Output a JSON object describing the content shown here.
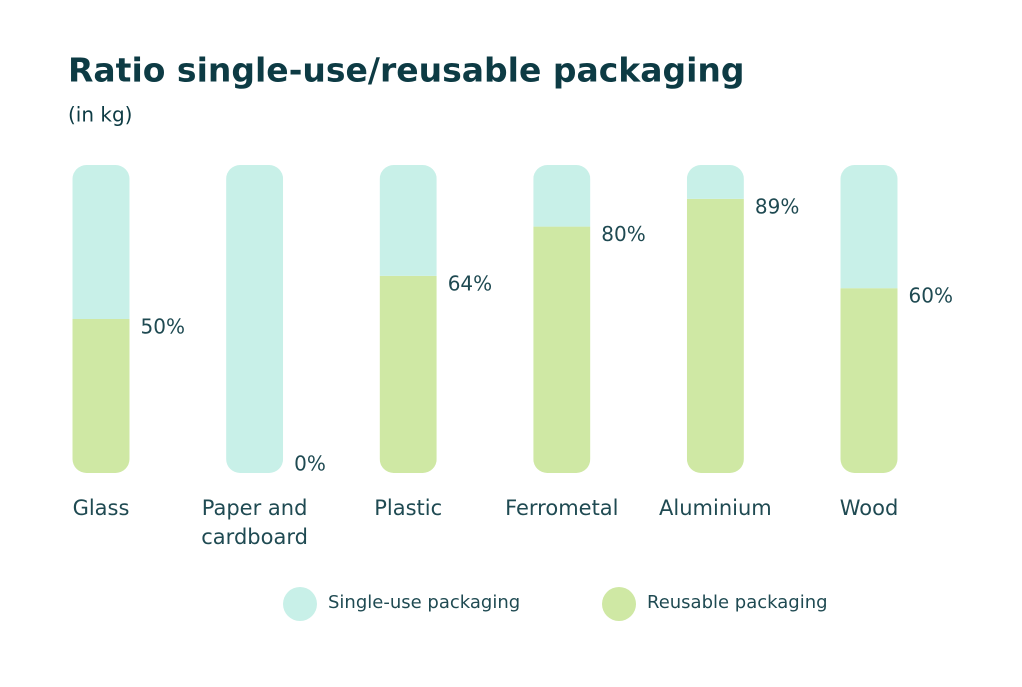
{
  "chart_data": {
    "type": "stacked_bar",
    "title": "Ratio single-use/reusable packaging",
    "subtitle": "(in kg)",
    "categories": [
      "Glass",
      "Paper and cardboard",
      "Plastic",
      "Ferrometal",
      "Aluminium",
      "Wood"
    ],
    "series": [
      {
        "name": "Single-use packaging",
        "color": "#c8f0e8",
        "values": [
          50,
          100,
          36,
          20,
          11,
          40
        ]
      },
      {
        "name": "Reusable packaging",
        "color": "#cfe8a4",
        "values": [
          50,
          0,
          64,
          80,
          89,
          60
        ],
        "value_labels": [
          "50%",
          "0%",
          "64%",
          "80%",
          "89%",
          "60%"
        ]
      }
    ]
  }
}
